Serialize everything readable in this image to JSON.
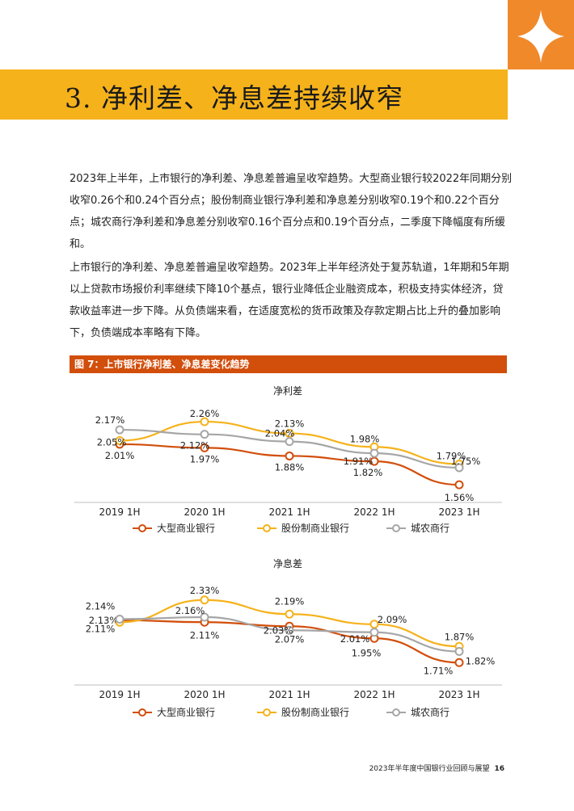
{
  "section_title": "3. 净利差、净息差持续收窄",
  "paragraphs": [
    "2023年上半年，上市银行的净利差、净息差普遍呈收窄趋势。大型商业银行较2022年同期分别收窄0.26个和0.24个百分点；股份制商业银行净利差和净息差分别收窄0.19个和0.22个百分点；城农商行净利差和净息差分别收窄0.16个百分点和0.19个百分点，二季度下降幅度有所缓和。",
    "上市银行的净利差、净息差普遍呈收窄趋势。2023年上半年经济处于复苏轨道，1年期和5年期以上贷款市场报价利率继续下降10个基点，银行业降低企业融资成本，积极支持实体经济，贷款收益率进一步下降。从负债端来看，在适度宽松的货币政策及存款定期占比上升的叠加影响下，负债端成本率略有下降。"
  ],
  "figure_title": "图 7：上市银行净利差、净息差变化趋势",
  "footer": {
    "text": "2023年半年度中国银行业回顾与展望",
    "page": "16"
  },
  "colors": {
    "corner": "#f0892a",
    "band": "#f5b21b",
    "figure_bar": "#d24e0b"
  },
  "chart_data": [
    {
      "type": "line",
      "title": "净利差",
      "categories": [
        "2019 1H",
        "2020 1H",
        "2021 1H",
        "2022 1H",
        "2023 1H"
      ],
      "ylim": [
        1.4,
        2.35
      ],
      "series": [
        {
          "name": "大型商业银行",
          "color": "#d24e0b",
          "values": [
            2.01,
            1.97,
            1.88,
            1.82,
            1.56
          ],
          "labels": [
            "2.01%",
            "1.97%",
            "1.88%",
            "1.82%",
            "1.56%"
          ]
        },
        {
          "name": "股份制商业银行",
          "color": "#f5b21b",
          "values": [
            2.05,
            2.26,
            2.13,
            1.98,
            1.79
          ],
          "labels": [
            "2.05%",
            "2.26%",
            "2.13%",
            "1.98%",
            "1.79%"
          ]
        },
        {
          "name": "城农商行",
          "color": "#a6a6a6",
          "values": [
            2.17,
            2.12,
            2.04,
            1.91,
            1.75
          ],
          "labels": [
            "2.17%",
            "2.12%",
            "2.04%",
            "1.91%",
            "1.75%"
          ]
        }
      ]
    },
    {
      "type": "line",
      "title": "净息差",
      "categories": [
        "2019 1H",
        "2020 1H",
        "2021 1H",
        "2022 1H",
        "2023 1H"
      ],
      "ylim": [
        1.6,
        2.4
      ],
      "series": [
        {
          "name": "大型商业银行",
          "color": "#d24e0b",
          "values": [
            2.13,
            2.11,
            2.07,
            1.95,
            1.71
          ],
          "labels": [
            "2.13%",
            "2.11%",
            "2.07%",
            "1.95%",
            "1.71%"
          ]
        },
        {
          "name": "股份制商业银行",
          "color": "#f5b21b",
          "values": [
            2.11,
            2.33,
            2.19,
            2.09,
            1.87
          ],
          "labels": [
            "2.11%",
            "2.33%",
            "2.19%",
            "2.09%",
            "1.87%"
          ]
        },
        {
          "name": "城农商行",
          "color": "#a6a6a6",
          "values": [
            2.14,
            2.16,
            2.03,
            2.01,
            1.82
          ],
          "labels": [
            "2.14%",
            "2.16%",
            "2.03%",
            "2.01%",
            "1.82%"
          ]
        }
      ]
    }
  ]
}
